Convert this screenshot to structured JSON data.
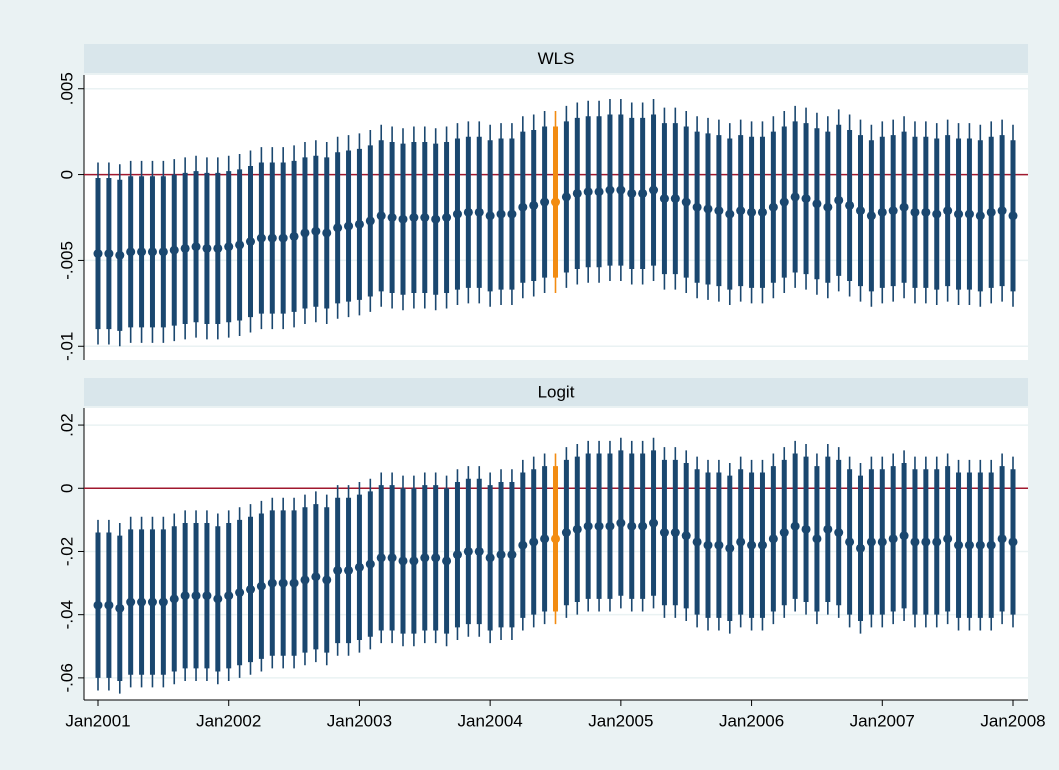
{
  "chart_data": [
    {
      "type": "errorbar",
      "title": "WLS",
      "values": [
        -0.0046,
        -0.0046,
        -0.0047,
        -0.0045,
        -0.0045,
        -0.0045,
        -0.0045,
        -0.0044,
        -0.0043,
        -0.0042,
        -0.0043,
        -0.0043,
        -0.0042,
        -0.0041,
        -0.0039,
        -0.0037,
        -0.0037,
        -0.0037,
        -0.0036,
        -0.0034,
        -0.0033,
        -0.0034,
        -0.0031,
        -0.003,
        -0.0029,
        -0.0027,
        -0.0024,
        -0.0025,
        -0.0026,
        -0.0025,
        -0.0025,
        -0.0026,
        -0.0025,
        -0.0023,
        -0.0022,
        -0.0022,
        -0.0024,
        -0.0023,
        -0.0023,
        -0.0019,
        -0.0018,
        -0.0016,
        -0.0016,
        -0.0013,
        -0.0011,
        -0.001,
        -0.001,
        -0.0009,
        -0.0009,
        -0.0011,
        -0.0011,
        -0.0009,
        -0.0014,
        -0.0014,
        -0.0016,
        -0.0019,
        -0.002,
        -0.0021,
        -0.0023,
        -0.0021,
        -0.0022,
        -0.0022,
        -0.0019,
        -0.0016,
        -0.0013,
        -0.0014,
        -0.0017,
        -0.0019,
        -0.0015,
        -0.0018,
        -0.0021,
        -0.0024,
        -0.0022,
        -0.0021,
        -0.0019,
        -0.0022,
        -0.0022,
        -0.0023,
        -0.0021,
        -0.0023,
        -0.0023,
        -0.0024,
        -0.0022,
        -0.0021,
        -0.0024
      ],
      "ci_inner": 0.0044,
      "ci_outer": 0.0053,
      "ylim": [
        -0.0108,
        0.0058
      ],
      "yticks": [
        {
          "value": -0.01,
          "label": "-.01"
        },
        {
          "value": -0.005,
          "label": "-.005"
        },
        0,
        {
          "value": 0.005,
          "label": ".005"
        }
      ],
      "hline": 0,
      "hline_color": "#a0182e",
      "grid": true
    },
    {
      "type": "errorbar",
      "title": "Logit",
      "categories": [
        "Jan2001",
        null,
        null,
        null,
        null,
        null,
        null,
        null,
        null,
        null,
        null,
        null,
        "Jan2002",
        null,
        null,
        null,
        null,
        null,
        null,
        null,
        null,
        null,
        null,
        null,
        "Jan2003",
        null,
        null,
        null,
        null,
        null,
        null,
        null,
        null,
        null,
        null,
        null,
        "Jan2004",
        null,
        null,
        null,
        null,
        null,
        null,
        null,
        null,
        null,
        null,
        null,
        "Jan2005",
        null,
        null,
        null,
        null,
        null,
        null,
        null,
        null,
        null,
        null,
        null,
        "Jan2006",
        null,
        null,
        null,
        null,
        null,
        null,
        null,
        null,
        null,
        null,
        null,
        "Jan2007",
        null,
        null,
        null,
        null,
        null,
        null,
        null,
        null,
        null,
        null,
        null,
        "Jan2008"
      ],
      "values": [
        -0.037,
        -0.037,
        -0.038,
        -0.036,
        -0.036,
        -0.036,
        -0.036,
        -0.035,
        -0.034,
        -0.034,
        -0.034,
        -0.035,
        -0.034,
        -0.033,
        -0.032,
        -0.031,
        -0.03,
        -0.03,
        -0.03,
        -0.029,
        -0.028,
        -0.029,
        -0.026,
        -0.026,
        -0.025,
        -0.024,
        -0.022,
        -0.022,
        -0.023,
        -0.023,
        -0.022,
        -0.022,
        -0.023,
        -0.021,
        -0.02,
        -0.02,
        -0.022,
        -0.021,
        -0.021,
        -0.018,
        -0.017,
        -0.016,
        -0.016,
        -0.014,
        -0.013,
        -0.012,
        -0.012,
        -0.012,
        -0.011,
        -0.012,
        -0.012,
        -0.011,
        -0.014,
        -0.014,
        -0.015,
        -0.017,
        -0.018,
        -0.018,
        -0.019,
        -0.017,
        -0.018,
        -0.018,
        -0.016,
        -0.014,
        -0.012,
        -0.013,
        -0.016,
        -0.013,
        -0.014,
        -0.017,
        -0.019,
        -0.017,
        -0.017,
        -0.016,
        -0.015,
        -0.017,
        -0.017,
        -0.017,
        -0.016,
        -0.018,
        -0.018,
        -0.018,
        -0.018,
        -0.016,
        -0.017
      ],
      "ci_inner": 0.023,
      "ci_outer": 0.027,
      "ylim": [
        -0.067,
        0.0254
      ],
      "yticks": [
        {
          "value": -0.06,
          "label": "-.06"
        },
        {
          "value": -0.04,
          "label": "-.04"
        },
        {
          "value": -0.02,
          "label": "-.02"
        },
        0,
        {
          "value": 0.02,
          "label": ".02"
        }
      ],
      "hline": 0,
      "hline_color": "#a0182e",
      "grid": true
    }
  ],
  "colors": [
    "#1a476f",
    "#1a476f",
    "#1a476f",
    "#1a476f",
    "#1a476f",
    "#1a476f",
    "#1a476f",
    "#1a476f",
    "#1a476f",
    "#1a476f",
    "#1a476f",
    "#1a476f",
    "#1a476f",
    "#1a476f",
    "#1a476f",
    "#1a476f",
    "#1a476f",
    "#1a476f",
    "#1a476f",
    "#1a476f",
    "#1a476f",
    "#1a476f",
    "#1a476f",
    "#1a476f",
    "#1a476f",
    "#1a476f",
    "#1a476f",
    "#1a476f",
    "#1a476f",
    "#1a476f",
    "#1a476f",
    "#1a476f",
    "#1a476f",
    "#1a476f",
    "#1a476f",
    "#1a476f",
    "#1a476f",
    "#1a476f",
    "#1a476f",
    "#1a476f",
    "#1a476f",
    "#1a476f",
    "#f28c12",
    "#1a476f",
    "#1a476f",
    "#1a476f",
    "#1a476f",
    "#1a476f",
    "#1a476f",
    "#1a476f",
    "#1a476f",
    "#1a476f",
    "#1a476f",
    "#1a476f",
    "#1a476f",
    "#1a476f",
    "#1a476f",
    "#1a476f",
    "#1a476f",
    "#1a476f",
    "#1a476f",
    "#1a476f",
    "#1a476f",
    "#1a476f",
    "#1a476f",
    "#1a476f",
    "#1a476f",
    "#1a476f",
    "#1a476f",
    "#1a476f",
    "#1a476f",
    "#1a476f",
    "#1a476f",
    "#1a476f",
    "#1a476f",
    "#1a476f",
    "#1a476f",
    "#1a476f",
    "#1a476f",
    "#1a476f",
    "#1a476f",
    "#1a476f",
    "#1a476f",
    "#1a476f",
    "#1a476f"
  ]
}
